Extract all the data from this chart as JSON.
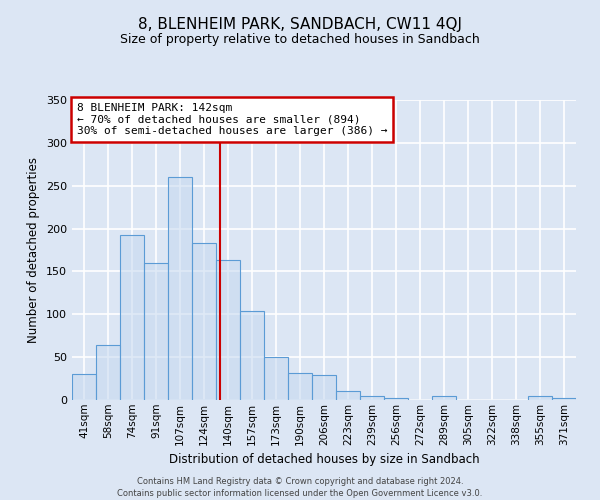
{
  "title": "8, BLENHEIM PARK, SANDBACH, CW11 4QJ",
  "subtitle": "Size of property relative to detached houses in Sandbach",
  "xlabel": "Distribution of detached houses by size in Sandbach",
  "ylabel": "Number of detached properties",
  "bar_labels": [
    "41sqm",
    "58sqm",
    "74sqm",
    "91sqm",
    "107sqm",
    "124sqm",
    "140sqm",
    "157sqm",
    "173sqm",
    "190sqm",
    "206sqm",
    "223sqm",
    "239sqm",
    "256sqm",
    "272sqm",
    "289sqm",
    "305sqm",
    "322sqm",
    "338sqm",
    "355sqm",
    "371sqm"
  ],
  "bar_values": [
    30,
    64,
    192,
    160,
    260,
    183,
    163,
    104,
    50,
    32,
    29,
    11,
    5,
    2,
    0,
    5,
    0,
    0,
    0,
    5,
    2
  ],
  "bar_face_color": "#c5d9f0",
  "bar_edge_color": "#5b9bd5",
  "vline_x": 6.15,
  "vline_color": "#cc0000",
  "annotation_title": "8 BLENHEIM PARK: 142sqm",
  "annotation_line1": "← 70% of detached houses are smaller (894)",
  "annotation_line2": "30% of semi-detached houses are larger (386) →",
  "annotation_box_color": "#cc0000",
  "ylim": [
    0,
    350
  ],
  "yticks": [
    0,
    50,
    100,
    150,
    200,
    250,
    300,
    350
  ],
  "footer1": "Contains HM Land Registry data © Crown copyright and database right 2024.",
  "footer2": "Contains public sector information licensed under the Open Government Licence v3.0.",
  "bg_color": "#dce6f4",
  "plot_bg_color": "#dce6f4",
  "grid_color": "#ffffff",
  "title_fontsize": 11,
  "subtitle_fontsize": 9,
  "label_fontsize": 8.5,
  "tick_fontsize": 8,
  "ann_fontsize": 8,
  "footer_fontsize": 6
}
